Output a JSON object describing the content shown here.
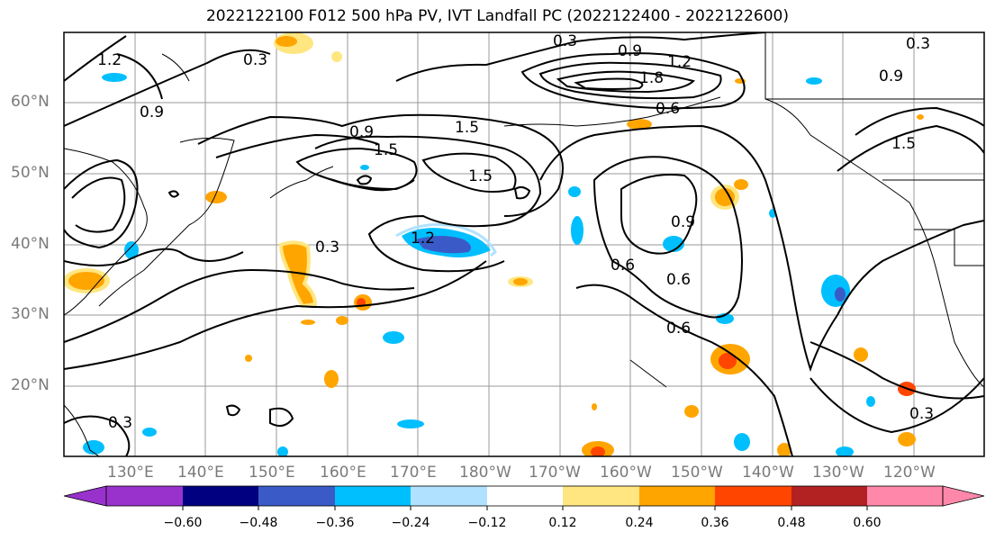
{
  "title": "2022122100 F012 500 hPa PV, IVT Landfall PC (2022122400 - 2022122600)",
  "lat_labels": [
    "60°N",
    "50°N",
    "40°N",
    "30°N",
    "20°N"
  ],
  "lon_labels": [
    "130°E",
    "140°E",
    "150°E",
    "160°E",
    "170°E",
    "180°W",
    "170°W",
    "160°W",
    "150°W",
    "140°W",
    "130°W",
    "120°W"
  ],
  "contour_labels": [
    "0.3",
    "0.9",
    "1.2",
    "1.8",
    "0.6",
    "1.5",
    "1.5",
    "1.5",
    "0.9",
    "0.6",
    "0.9",
    "0.3",
    "0.3",
    "0.6",
    "0.6",
    "0.3",
    "1.5",
    "0.9",
    "1.2",
    "0.9",
    "0.3",
    "1.2",
    "0.3"
  ],
  "colorbar": {
    "tick_labels": [
      "−0.60",
      "−0.48",
      "−0.36",
      "−0.24",
      "−0.12",
      "0.12",
      "0.24",
      "0.36",
      "0.48",
      "0.60"
    ],
    "colors": [
      "#9932cc",
      "#000080",
      "#3a5bc7",
      "#00bfff",
      "#b0e2ff",
      "#ffffff",
      "#ffe680",
      "#ffa500",
      "#ff4500",
      "#b22222",
      "#ff88aa"
    ]
  },
  "shading_colors": {
    "neg_dark": "#3a5bc7",
    "neg_mid": "#00bfff",
    "pos_light": "#ffe680",
    "pos_mid": "#ffa500",
    "pos_dark": "#ff4500",
    "pos_darker": "#b22222"
  }
}
